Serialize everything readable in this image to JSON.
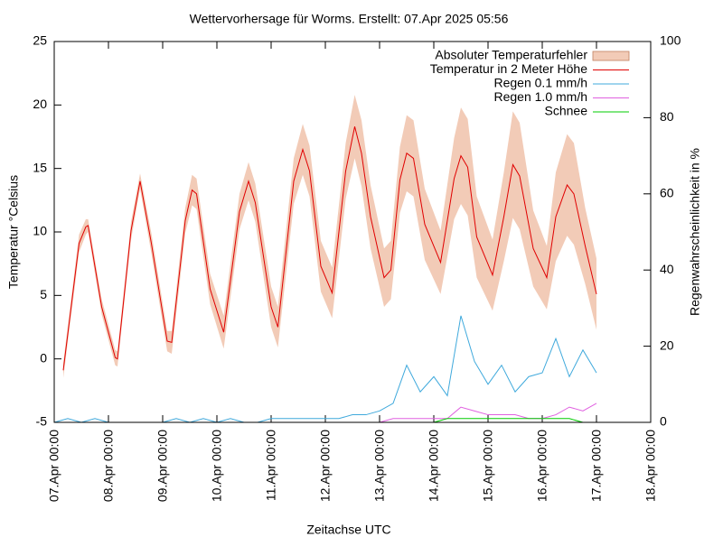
{
  "chart_data": {
    "type": "line",
    "title": "Wettervorhersage für Worms. Erstellt: 07.Apr 2025 05:56",
    "x_label": "Zeitachse UTC",
    "y_label": "Temperatur °Celsius",
    "y2_label": "Regenwahrscheinlichkeit in %",
    "xlim": [
      0,
      264
    ],
    "xticks": [
      {
        "value": 0,
        "label": "07.Apr 00:00"
      },
      {
        "value": 24,
        "label": "08.Apr 00:00"
      },
      {
        "value": 48,
        "label": "09.Apr 00:00"
      },
      {
        "value": 72,
        "label": "10.Apr 00:00"
      },
      {
        "value": 96,
        "label": "11.Apr 00:00"
      },
      {
        "value": 120,
        "label": "12.Apr 00:00"
      },
      {
        "value": 144,
        "label": "13.Apr 00:00"
      },
      {
        "value": 168,
        "label": "14.Apr 00:00"
      },
      {
        "value": 192,
        "label": "15.Apr 00:00"
      },
      {
        "value": 216,
        "label": "16.Apr 00:00"
      },
      {
        "value": 240,
        "label": "17.Apr 00:00"
      },
      {
        "value": 264,
        "label": "18.Apr 00:00"
      }
    ],
    "ylim": [
      -5,
      25
    ],
    "yticks": [
      -5,
      0,
      5,
      10,
      15,
      20,
      25
    ],
    "y2lim": [
      0,
      100
    ],
    "y2ticks": [
      0,
      20,
      40,
      60,
      80,
      100
    ],
    "legend": "top-right",
    "series": [
      {
        "name": "Absoluter Temperaturfehler",
        "color": "#f2cbb7",
        "band_around": 1,
        "x": [
          4,
          11,
          14,
          15,
          21,
          27,
          28,
          34,
          38,
          43,
          50,
          52,
          58,
          61,
          63,
          69,
          75,
          82,
          86,
          89,
          96,
          99,
          106,
          110,
          113,
          118,
          123,
          129,
          133,
          136,
          140,
          146,
          149,
          153,
          156,
          159,
          164,
          171,
          177,
          180,
          183,
          187,
          194,
          199,
          203,
          206,
          212,
          218,
          222,
          227,
          230,
          235,
          240
        ],
        "values": [
          0.6,
          0.7,
          0.6,
          0.5,
          0.6,
          0.6,
          0.6,
          0.7,
          0.6,
          0.8,
          0.8,
          0.9,
          1,
          1.2,
          1.2,
          1.2,
          1.3,
          1.4,
          1.5,
          1.5,
          1.6,
          1.6,
          1.8,
          2,
          2,
          2,
          2,
          2.2,
          2.5,
          2.6,
          2.5,
          2.3,
          2.3,
          2.6,
          3,
          3,
          2.8,
          2.5,
          3.2,
          3.8,
          3.8,
          3.2,
          2.8,
          3.5,
          4.2,
          4.2,
          3,
          2.5,
          3.5,
          4,
          4,
          3,
          2.8
        ]
      },
      {
        "name": "Temperatur in 2 Meter Höhe",
        "color": "#e00000",
        "x": [
          4,
          11,
          14,
          15,
          21,
          27,
          28,
          34,
          38,
          43,
          50,
          52,
          58,
          61,
          63,
          69,
          75,
          82,
          86,
          89,
          96,
          99,
          106,
          110,
          113,
          118,
          123,
          129,
          133,
          136,
          140,
          146,
          149,
          153,
          156,
          159,
          164,
          171,
          177,
          180,
          183,
          187,
          194,
          199,
          203,
          206,
          212,
          218,
          222,
          227,
          230,
          235,
          240
        ],
        "values": [
          -0.9,
          9.1,
          10.4,
          10.5,
          4.1,
          0.1,
          0,
          10.1,
          14,
          9.1,
          1.4,
          1.3,
          10.9,
          13.3,
          13,
          5.5,
          2.1,
          11.6,
          14,
          12.3,
          4.1,
          2.5,
          14,
          16.5,
          14.8,
          7.3,
          5.2,
          14.8,
          18.3,
          16.2,
          11.2,
          6.4,
          7,
          14.1,
          16.2,
          15.8,
          10.6,
          7.6,
          14.2,
          16,
          15.1,
          9.6,
          6.6,
          11.2,
          15.3,
          14.4,
          8.7,
          6.4,
          11.2,
          13.7,
          13,
          8.9,
          5.1
        ]
      },
      {
        "name": "Regen 0.1 mm/h",
        "color": "#3fa9dc",
        "axis": "y2",
        "x": [
          0,
          6,
          12,
          18,
          24,
          30,
          36,
          42,
          48,
          54,
          60,
          66,
          72,
          78,
          84,
          90,
          96,
          102,
          108,
          114,
          120,
          126,
          132,
          138,
          144,
          150,
          156,
          162,
          168,
          174,
          180,
          186,
          192,
          198,
          204,
          210,
          216,
          222,
          228,
          234,
          240
        ],
        "values": [
          0,
          1,
          0,
          1,
          0,
          0,
          0,
          0,
          0,
          1,
          0,
          1,
          0,
          1,
          0,
          0,
          1,
          1,
          1,
          1,
          1,
          1,
          2,
          2,
          3,
          5,
          15,
          8,
          12,
          7,
          28,
          16,
          10,
          15,
          8,
          12,
          13,
          22,
          12,
          19,
          13
        ]
      },
      {
        "name": "Regen 1.0 mm/h",
        "color": "#e060e0",
        "axis": "y2",
        "x": [
          144,
          150,
          156,
          162,
          168,
          174,
          180,
          186,
          192,
          198,
          204,
          210,
          216,
          222,
          228,
          234,
          240
        ],
        "values": [
          0,
          1,
          1,
          1,
          1,
          1,
          4,
          3,
          2,
          2,
          2,
          1,
          1,
          2,
          4,
          3,
          5
        ]
      },
      {
        "name": "Schnee",
        "color": "#00cc00",
        "axis": "y2",
        "x": [
          168,
          174,
          180,
          186,
          192,
          198,
          204,
          210,
          216,
          222,
          228,
          234
        ],
        "values": [
          0,
          1,
          1,
          1,
          1,
          1,
          1,
          1,
          1,
          1,
          1,
          0
        ]
      }
    ]
  }
}
